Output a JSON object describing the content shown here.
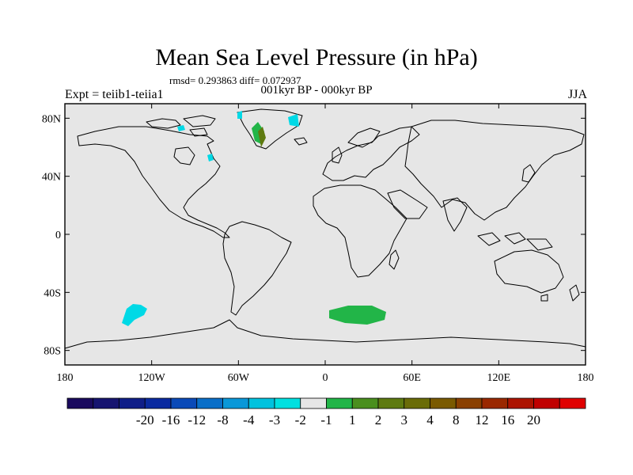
{
  "title": "Mean Sea Level Pressure (in hPa)",
  "stats": "rmsd= 0.293863 diff= 0.072937",
  "period": "001kyr BP - 000kyr BP",
  "experiment": "Expt = teiib1-teiia1",
  "season": "JJA",
  "map": {
    "background_color": "#e6e6e6",
    "projection": "cylindrical-equidistant",
    "lat_range": [
      -90,
      90
    ],
    "lon_range": [
      -180,
      180
    ],
    "lat_labels": [
      "80N",
      "40N",
      "0",
      "40S",
      "80S"
    ],
    "lat_values": [
      80,
      40,
      0,
      -40,
      -80
    ],
    "lon_labels": [
      "180",
      "120W",
      "60W",
      "0",
      "60E",
      "120E",
      "180"
    ],
    "lon_values": [
      -180,
      -120,
      -60,
      0,
      60,
      120,
      180
    ],
    "anomaly_regions": [
      {
        "region": "South Pacific",
        "level": "-2 to -1",
        "color": "#00d9e6"
      },
      {
        "region": "South Atlantic / Southern Ocean",
        "level": "1 to 2",
        "color": "#22b548"
      },
      {
        "region": "Greenland",
        "level": "mixed -3 to 4",
        "color": "#22b548"
      },
      {
        "region": "Canadian Arctic",
        "level": "-2 to -1",
        "color": "#00d9e6"
      }
    ]
  },
  "colorbar": {
    "colors": [
      "#1a0a5e",
      "#161470",
      "#0f1e88",
      "#0a2aa0",
      "#0a4ab8",
      "#0a6fc8",
      "#0a98d8",
      "#00c2de",
      "#00e0e0",
      "#e6e6e6",
      "#22b548",
      "#4a8f1e",
      "#5e7a10",
      "#6a6c08",
      "#7a5a00",
      "#8a4000",
      "#9a2800",
      "#ac1400",
      "#c00000",
      "#e00000"
    ],
    "labels": [
      "-20",
      "-16",
      "-12",
      "-8",
      "-4",
      "-3",
      "-2",
      "-1",
      "1",
      "2",
      "3",
      "4",
      "8",
      "12",
      "16",
      "20"
    ]
  }
}
